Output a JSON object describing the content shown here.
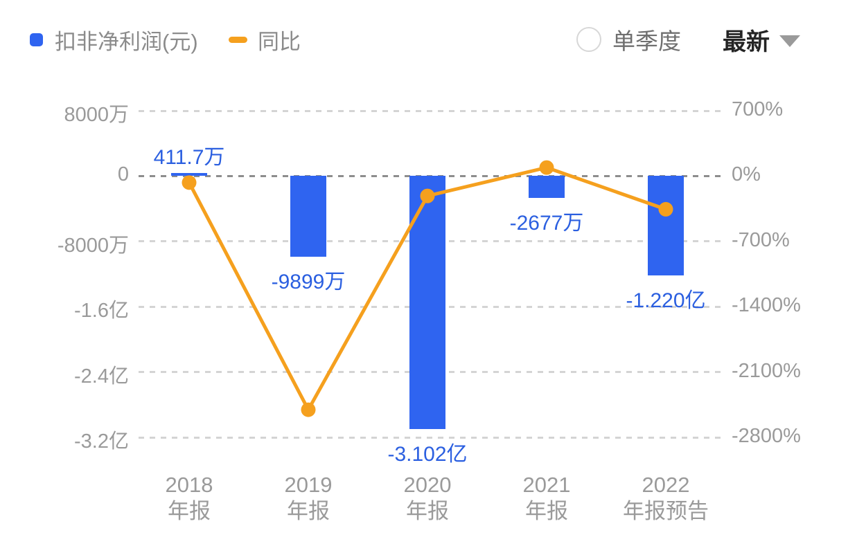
{
  "legend": {
    "profit_label": "扣非净利润(元)",
    "yoy_label": "同比"
  },
  "controls": {
    "radio_label": "单季度",
    "radio_checked": false,
    "dropdown_label": "最新"
  },
  "colors": {
    "bar_blue": "#2F64F0",
    "value_label_blue": "#2B5FE0",
    "line_orange": "#F5A01E",
    "axis_text_gray": "#9A9A9A",
    "legend_text_gray": "#8B8B8B",
    "dropdown_text_dark": "#242424",
    "grid_light": "#D4D4D4",
    "grid_zero": "#8D8D8D"
  },
  "chart_data": {
    "type": "combo-bar-line",
    "categories": [
      {
        "line1": "2018",
        "line2": "年报"
      },
      {
        "line1": "2019",
        "line2": "年报"
      },
      {
        "line1": "2020",
        "line2": "年报"
      },
      {
        "line1": "2021",
        "line2": "年报"
      },
      {
        "line1": "2022",
        "line2": "年报预告"
      }
    ],
    "series": [
      {
        "name": "扣非净利润(元)",
        "type": "bar",
        "unit": "万元",
        "values": [
          411.7,
          -9899,
          -31020,
          -2677,
          -12200
        ],
        "labels": [
          "411.7万",
          "-9899万",
          "-3.102亿",
          "-2677万",
          "-1.220亿"
        ]
      },
      {
        "name": "同比",
        "type": "line",
        "unit": "%",
        "values": [
          -70,
          -2504,
          -213,
          91,
          -356
        ],
        "values_estimated_from_plot": true
      }
    ],
    "left_axis": {
      "min": -32000,
      "max": 8000,
      "unit": "万元",
      "tick_values": [
        8000,
        0,
        -8000,
        -16000,
        -24000,
        -32000
      ],
      "tick_labels": [
        "8000万",
        "0",
        "-8000万",
        "-1.6亿",
        "-2.4亿",
        "-3.2亿"
      ]
    },
    "right_axis": {
      "min": -2800,
      "max": 700,
      "unit": "%",
      "tick_values": [
        700,
        0,
        -700,
        -1400,
        -2100,
        -2800
      ],
      "tick_labels": [
        "700%",
        "0%",
        "-700%",
        "-1400%",
        "-2100%",
        "-2800%"
      ]
    },
    "grid": "dashed-horizontal",
    "legend_position": "top-left"
  }
}
